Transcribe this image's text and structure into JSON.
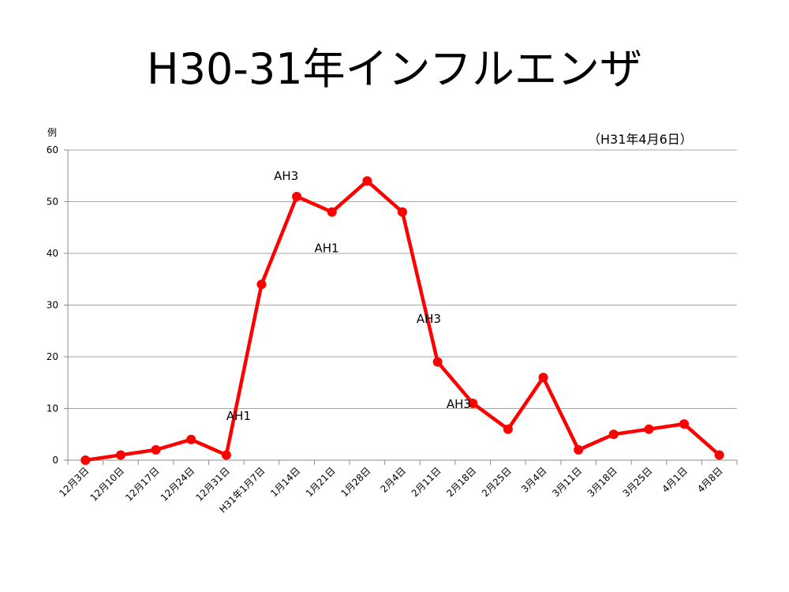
{
  "title": "H30-31年インフルエンザ",
  "chart_data": {
    "type": "line",
    "title": "H30-31年インフルエンザ",
    "date_note": "（H31年4月6日）",
    "ylabel": "例",
    "xlabel": "",
    "ylim": [
      0,
      60
    ],
    "yticks": [
      0,
      10,
      20,
      30,
      40,
      50,
      60
    ],
    "grid": true,
    "categories": [
      "12月3日",
      "12月10日",
      "12月17日",
      "12月24日",
      "12月31日",
      "H31年1月7日",
      "1月14日",
      "1月21日",
      "1月28日",
      "2月4日",
      "2月11日",
      "2月18日",
      "2月25日",
      "3月4日",
      "3月11日",
      "3月18日",
      "3月25日",
      "4月1日",
      "4月8日"
    ],
    "series": [
      {
        "values": [
          0,
          1,
          2,
          4,
          1,
          34,
          51,
          48,
          54,
          48,
          19,
          11,
          6,
          16,
          2,
          5,
          6,
          7,
          1
        ],
        "color": "#ff0000"
      }
    ],
    "annotations": [
      {
        "text": "AH1",
        "x_index": 4.35,
        "y": 7.8
      },
      {
        "text": "AH3",
        "x_index": 5.7,
        "y": 54.2
      },
      {
        "text": "AH1",
        "x_index": 6.85,
        "y": 40.2
      },
      {
        "text": "AH3",
        "x_index": 9.75,
        "y": 26.6
      },
      {
        "text": "AH3",
        "x_index": 10.6,
        "y": 10.1
      }
    ]
  }
}
